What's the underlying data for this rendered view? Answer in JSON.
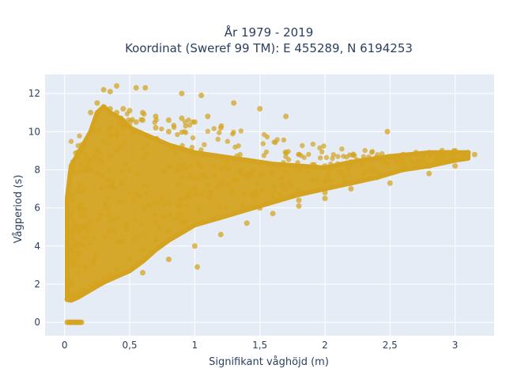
{
  "chart_data": {
    "type": "scatter",
    "title_line1": "År 1979 - 2019",
    "title_line2": "Koordinat (Sweref 99 TM): E 455289, N 6194253",
    "xlabel": "Signifikant våghöjd (m)",
    "ylabel": "Vågperiod (s)",
    "xlim": [
      -0.15,
      3.3
    ],
    "ylim": [
      -0.7,
      13
    ],
    "x_ticks": [
      0,
      0.5,
      1,
      1.5,
      2,
      2.5,
      3
    ],
    "x_tick_labels": [
      "0",
      "0,5",
      "1",
      "1,5",
      "2",
      "2,5",
      "3"
    ],
    "y_ticks": [
      0,
      2,
      4,
      6,
      8,
      10,
      12
    ],
    "y_tick_labels": [
      "0",
      "2",
      "4",
      "6",
      "8",
      "10",
      "12"
    ],
    "grid": true,
    "marker_color": "#d4a420",
    "plot_background": "#e5ecf6",
    "approx_x_range_of_points": [
      0.02,
      3.15
    ],
    "approx_y_range_of_points": [
      0,
      12.4
    ],
    "series": [
      {
        "x": [
          0.02,
          0.03,
          0.04,
          0.05,
          0.06,
          0.07,
          0.08,
          0.09,
          0.1,
          0.11,
          0.12,
          0.13,
          0.02,
          0.03,
          0.04,
          0.05,
          0.06,
          0.08,
          0.1,
          0.12,
          0.15,
          0.03,
          0.05,
          0.08,
          0.1,
          0.12,
          0.15,
          0.2,
          0.25,
          0.3,
          0.35,
          0.4,
          0.5,
          0.6,
          0.7,
          0.8,
          0.9,
          0.15,
          0.2,
          0.25,
          0.3,
          0.35,
          0.4,
          0.45,
          0.5,
          0.55,
          0.6,
          0.7,
          0.8,
          0.2,
          0.25,
          0.3,
          0.35,
          0.4,
          0.45,
          0.5,
          0.6,
          0.7,
          0.8,
          0.9,
          1.0,
          1.1,
          1.2,
          0.3,
          0.35,
          0.4,
          0.55,
          0.62,
          0.9,
          1.05,
          1.3,
          1.5,
          1.7,
          1.0,
          1.1,
          1.2,
          1.3,
          1.4,
          1.5,
          1.6,
          1.7,
          1.8,
          1.9,
          2.0,
          2.1,
          2.2,
          2.3,
          2.4,
          2.5,
          2.6,
          2.7,
          2.8,
          2.9,
          3.0,
          3.1,
          3.15,
          2.0,
          2.2,
          2.4,
          2.6,
          2.8,
          3.0,
          1.5,
          1.8,
          2.0,
          2.2,
          2.5,
          2.8,
          3.0,
          0.6,
          0.8,
          1.0,
          1.2,
          1.4,
          1.6,
          1.8,
          2.0,
          0.1,
          0.15,
          0.2,
          0.25,
          0.3,
          0.4,
          0.5,
          1.02,
          2.48
        ],
        "y": [
          0,
          0,
          0,
          0,
          0,
          0,
          0,
          0,
          0,
          0,
          0,
          0,
          1.2,
          1.3,
          1.5,
          2.0,
          3.0,
          4.0,
          5.0,
          6.0,
          7.0,
          1.2,
          1.3,
          1.4,
          1.5,
          1.6,
          1.7,
          1.9,
          2.1,
          2.3,
          2.5,
          2.8,
          3.3,
          3.8,
          4.3,
          4.8,
          5.3,
          8.0,
          8.5,
          9.0,
          9.5,
          9.8,
          10.0,
          10.2,
          10.3,
          10.5,
          10.6,
          10.2,
          10.0,
          11.0,
          11.5,
          11.3,
          11.2,
          11.0,
          11.2,
          11.1,
          11.0,
          10.8,
          10.6,
          10.7,
          10.5,
          10.8,
          10.2,
          12.2,
          12.1,
          12.4,
          12.3,
          12.3,
          12.0,
          11.9,
          11.5,
          11.2,
          10.8,
          7.0,
          7.2,
          7.3,
          7.5,
          7.6,
          7.7,
          7.8,
          7.9,
          8.0,
          8.1,
          8.2,
          8.3,
          8.4,
          8.5,
          8.6,
          8.7,
          8.8,
          8.9,
          8.9,
          9.0,
          9.0,
          8.9,
          8.8,
          7.0,
          7.3,
          7.6,
          8.0,
          8.2,
          8.5,
          6.0,
          6.4,
          6.8,
          7.0,
          7.3,
          7.8,
          8.2,
          2.6,
          3.3,
          4.0,
          4.6,
          5.2,
          5.7,
          6.1,
          6.5,
          6.0,
          7.0,
          8.0,
          9.0,
          9.5,
          9.0,
          8.0,
          2.9,
          10.0
        ]
      }
    ]
  }
}
